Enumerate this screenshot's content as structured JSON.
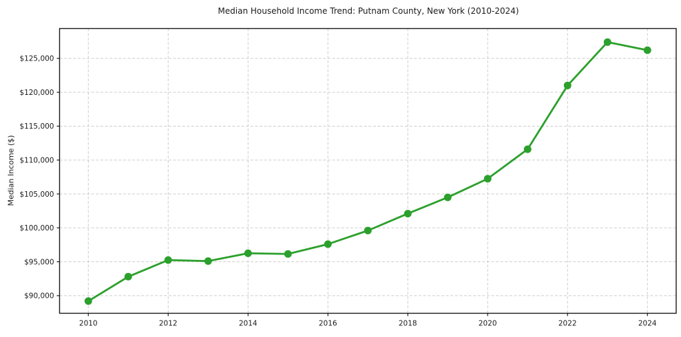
{
  "page": {
    "background_color": "#ffffff",
    "text_color": "#1a1a1a"
  },
  "chart_data": {
    "type": "line",
    "title": "Median Household Income Trend: Putnam County, New York (2010-2024)",
    "xlabel": "",
    "ylabel": "Median Income ($)",
    "x": [
      2010,
      2011,
      2012,
      2013,
      2014,
      2015,
      2016,
      2017,
      2018,
      2019,
      2020,
      2021,
      2022,
      2023,
      2024
    ],
    "series": [
      {
        "name": "Median Household Income",
        "color": "#2ca02c",
        "marker": "circle",
        "marker_radius": 5.5,
        "line_width": 2.8,
        "values": [
          89200,
          92800,
          95250,
          95100,
          96250,
          96150,
          97600,
          99600,
          102100,
          104500,
          107250,
          111600,
          121000,
          127400,
          126200
        ]
      }
    ],
    "x_ticks": [
      2010,
      2012,
      2014,
      2016,
      2018,
      2020,
      2022,
      2024
    ],
    "x_tick_labels": [
      "2010",
      "2012",
      "2014",
      "2016",
      "2018",
      "2020",
      "2022",
      "2024"
    ],
    "y_ticks": [
      90000,
      95000,
      100000,
      105000,
      110000,
      115000,
      120000,
      125000
    ],
    "y_tick_labels": [
      "$90,000",
      "$95,000",
      "$100,000",
      "$105,000",
      "$110,000",
      "$115,000",
      "$120,000",
      "$125,000"
    ],
    "xlim": [
      2009.28,
      2024.72
    ],
    "ylim": [
      87400,
      129400
    ],
    "grid": true,
    "grid_line_style": "dashed",
    "grid_color": "#cdcdcd",
    "spine_color": "#1a1a1a",
    "legend_position": "none"
  }
}
